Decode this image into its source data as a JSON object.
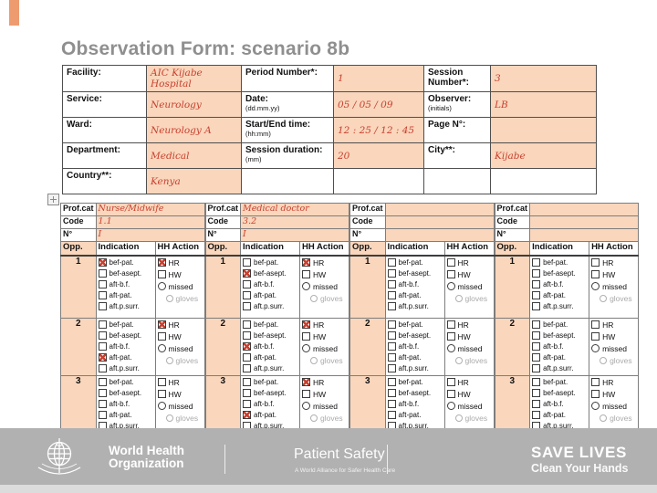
{
  "title": "Observation Form: scenario 8b",
  "colors": {
    "peach": "#f9d6bc",
    "ink_red": "#c8402f",
    "footer_gray": "#b1b1b1",
    "title_gray": "#8f8f8f",
    "accent": "#ee9b70"
  },
  "header_form": {
    "rows_left": [
      {
        "label": "Facility:",
        "sub": "",
        "value": "AIC Kijabe Hospital"
      },
      {
        "label": "Service:",
        "sub": "",
        "value": "Neurology"
      },
      {
        "label": "Ward:",
        "sub": "",
        "value": "Neurology A"
      },
      {
        "label": "Department:",
        "sub": "",
        "value": "Medical"
      },
      {
        "label": "Country**:",
        "sub": "",
        "value": "Kenya"
      }
    ],
    "rows_middle": [
      {
        "label": "Period Number*:",
        "sub": "",
        "value": "1"
      },
      {
        "label": "Date:",
        "sub": "(dd.mm.yy)",
        "value": "05 / 05 / 09"
      },
      {
        "label": "Start/End time:",
        "sub": "(hh:mm)",
        "value": "12 : 25 / 12 : 45"
      },
      {
        "label": "Session duration:",
        "sub": "(mm)",
        "value": "20"
      },
      {
        "label": "",
        "sub": "",
        "value": ""
      }
    ],
    "rows_right": [
      {
        "label": "Session Number*:",
        "sub": "",
        "value": "3"
      },
      {
        "label": "Observer:",
        "sub": "(initials)",
        "value": "LB"
      },
      {
        "label": "Page N°:",
        "sub": "",
        "value": ""
      },
      {
        "label": "City**:",
        "sub": "",
        "value": "Kijabe"
      },
      {
        "label": "",
        "sub": "",
        "value": ""
      }
    ]
  },
  "grid": {
    "labels": {
      "prof_cat": "Prof.cat",
      "code": "Code",
      "number": "N°",
      "opp": "Opp.",
      "indication": "Indication",
      "hh_action": "HH Action"
    },
    "indications": [
      "bef-pat.",
      "bef-asept.",
      "aft-b.f.",
      "aft-pat.",
      "aft.p.surr."
    ],
    "actions": [
      "HR",
      "HW",
      "missed",
      "gloves"
    ],
    "groups": [
      {
        "prof_cat": "Nurse/Midwife",
        "code": "1.1",
        "n": "I",
        "opps": [
          {
            "num": "1",
            "indications": [
              1,
              0,
              0,
              0,
              0
            ],
            "actions": [
              1,
              0,
              0,
              0
            ]
          },
          {
            "num": "2",
            "indications": [
              0,
              0,
              0,
              1,
              0
            ],
            "actions": [
              1,
              0,
              0,
              0
            ]
          },
          {
            "num": "3",
            "indications": [
              0,
              0,
              0,
              0,
              0
            ],
            "actions": [
              0,
              0,
              0,
              0
            ]
          }
        ]
      },
      {
        "prof_cat": "Medical doctor",
        "code": "3.2",
        "n": "I",
        "opps": [
          {
            "num": "1",
            "indications": [
              0,
              1,
              0,
              0,
              0
            ],
            "actions": [
              1,
              0,
              0,
              0
            ]
          },
          {
            "num": "2",
            "indications": [
              0,
              0,
              1,
              0,
              0
            ],
            "actions": [
              1,
              0,
              0,
              0
            ]
          },
          {
            "num": "3",
            "indications": [
              0,
              0,
              0,
              1,
              0
            ],
            "actions": [
              1,
              0,
              0,
              0
            ]
          }
        ]
      },
      {
        "prof_cat": "",
        "code": "",
        "n": "",
        "opps": [
          {
            "num": "1",
            "indications": [
              0,
              0,
              0,
              0,
              0
            ],
            "actions": [
              0,
              0,
              0,
              0
            ]
          },
          {
            "num": "2",
            "indications": [
              0,
              0,
              0,
              0,
              0
            ],
            "actions": [
              0,
              0,
              0,
              0
            ]
          },
          {
            "num": "3",
            "indications": [
              0,
              0,
              0,
              0,
              0
            ],
            "actions": [
              0,
              0,
              0,
              0
            ]
          }
        ]
      },
      {
        "prof_cat": "",
        "code": "",
        "n": "",
        "opps": [
          {
            "num": "1",
            "indications": [
              0,
              0,
              0,
              0,
              0
            ],
            "actions": [
              0,
              0,
              0,
              0
            ]
          },
          {
            "num": "2",
            "indications": [
              0,
              0,
              0,
              0,
              0
            ],
            "actions": [
              0,
              0,
              0,
              0
            ]
          },
          {
            "num": "3",
            "indications": [
              0,
              0,
              0,
              0,
              0
            ],
            "actions": [
              0,
              0,
              0,
              0
            ]
          }
        ]
      }
    ]
  },
  "footer": {
    "who_line1": "World Health",
    "who_line2": "Organization",
    "program": "Patient Safety",
    "program_sub": "A World Alliance for Safer Health Care",
    "campaign": "SAVE LIVES",
    "campaign_sub": "Clean Your Hands"
  }
}
